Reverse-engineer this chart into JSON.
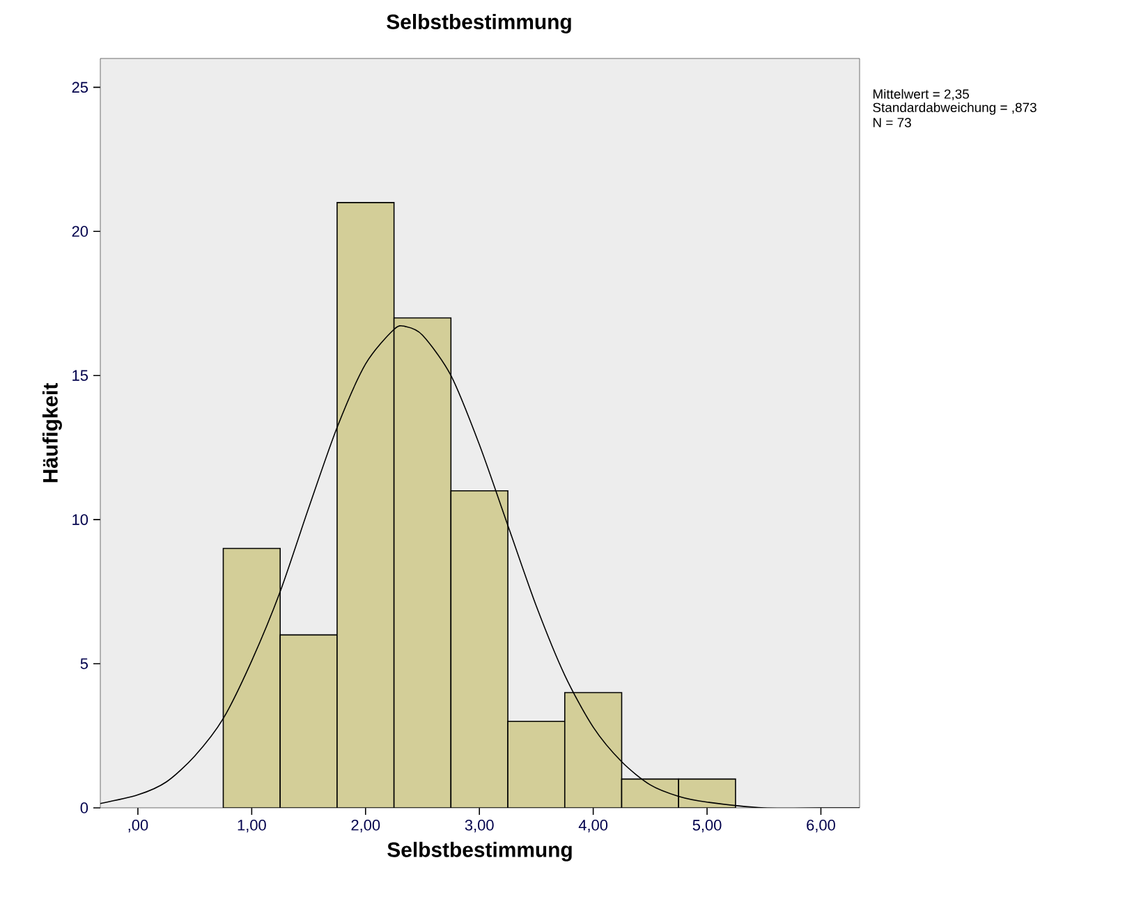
{
  "chart_data": {
    "type": "histogram",
    "title": "Selbstbestimmung",
    "xlabel": "Selbstbestimmung",
    "ylabel": "Häufigkeit",
    "bins": [
      0.75,
      1.25,
      1.75,
      2.25,
      2.75,
      3.25,
      3.75,
      4.25,
      4.75,
      5.25
    ],
    "values": [
      9,
      6,
      21,
      17,
      11,
      3,
      4,
      1,
      1
    ],
    "color": "#d3ce98",
    "series": [
      {
        "type": "line",
        "color": "#000000",
        "x": [
          -0.33,
          0.0,
          0.25,
          0.5,
          0.75,
          1.0,
          1.25,
          1.5,
          1.75,
          2.0,
          2.25,
          2.35,
          2.5,
          2.75,
          3.0,
          3.25,
          3.5,
          3.75,
          4.0,
          4.25,
          4.5,
          4.75,
          5.0,
          5.5,
          6.0,
          6.34
        ],
        "values": [
          0.15,
          0.45,
          0.9,
          1.8,
          3.1,
          5.1,
          7.5,
          10.4,
          13.2,
          15.4,
          16.6,
          16.7,
          16.4,
          15.0,
          12.6,
          9.8,
          7.0,
          4.6,
          2.8,
          1.6,
          0.8,
          0.4,
          0.2,
          0.0,
          0.0,
          0.0
        ]
      }
    ],
    "xlim": [
      -0.33,
      6.34
    ],
    "ylim": [
      0,
      26
    ],
    "xticks": [
      {
        "value": 0,
        "label": ",00"
      },
      {
        "value": 1,
        "label": "1,00"
      },
      {
        "value": 2,
        "label": "2,00"
      },
      {
        "value": 3,
        "label": "3,00"
      },
      {
        "value": 4,
        "label": "4,00"
      },
      {
        "value": 5,
        "label": "5,00"
      },
      {
        "value": 6,
        "label": "6,00"
      }
    ],
    "yticks": [
      0,
      5,
      10,
      15,
      20,
      25
    ],
    "annotations": [
      "Mittelwert = 2,35",
      "Standardabweichung = ,873",
      "N = 73"
    ]
  }
}
